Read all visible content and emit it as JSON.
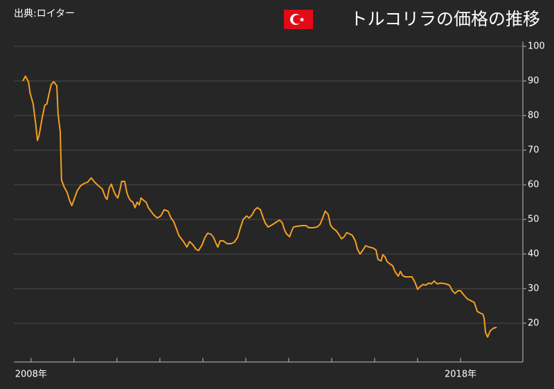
{
  "chart_data": {
    "type": "line",
    "source": "出典:ロイター",
    "title": "トルコリラの価格の推移",
    "color": "#f5a020",
    "grid": true,
    "ylim": [
      10,
      100
    ],
    "yticks": [
      20,
      30,
      40,
      50,
      60,
      70,
      80,
      90,
      100
    ],
    "xlim": [
      2007.6,
      2019.45
    ],
    "xticks": [
      {
        "value": 2008,
        "label": "2008年"
      },
      {
        "value": 2009,
        "label": null
      },
      {
        "value": 2010,
        "label": null
      },
      {
        "value": 2011,
        "label": null
      },
      {
        "value": 2012,
        "label": null
      },
      {
        "value": 2013,
        "label": null
      },
      {
        "value": 2014,
        "label": null
      },
      {
        "value": 2015,
        "label": null
      },
      {
        "value": 2016,
        "label": null
      },
      {
        "value": 2017,
        "label": null
      },
      {
        "value": 2018,
        "label": "2018年"
      }
    ],
    "x": [
      2007.81,
      2007.87,
      2007.94,
      2007.98,
      2008.05,
      2008.11,
      2008.15,
      2008.19,
      2008.26,
      2008.32,
      2008.37,
      2008.42,
      2008.47,
      2008.53,
      2008.6,
      2008.63,
      2008.68,
      2008.71,
      2008.77,
      2008.84,
      2008.9,
      2008.95,
      2009.02,
      2009.08,
      2009.16,
      2009.24,
      2009.32,
      2009.4,
      2009.48,
      2009.56,
      2009.66,
      2009.73,
      2009.77,
      2009.82,
      2009.87,
      2009.92,
      2009.97,
      2010.02,
      2010.06,
      2010.11,
      2010.18,
      2010.23,
      2010.27,
      2010.32,
      2010.37,
      2010.42,
      2010.47,
      2010.52,
      2010.56,
      2010.63,
      2010.68,
      2010.73,
      2010.79,
      2010.85,
      2010.94,
      2011.02,
      2011.1,
      2011.19,
      2011.26,
      2011.32,
      2011.37,
      2011.44,
      2011.5,
      2011.56,
      2011.63,
      2011.69,
      2011.76,
      2011.84,
      2011.9,
      2011.98,
      2012.05,
      2012.11,
      2012.18,
      2012.24,
      2012.31,
      2012.35,
      2012.4,
      2012.48,
      2012.56,
      2012.66,
      2012.73,
      2012.81,
      2012.87,
      2012.94,
      2013.02,
      2013.08,
      2013.15,
      2013.21,
      2013.27,
      2013.34,
      2013.39,
      2013.45,
      2013.52,
      2013.58,
      2013.66,
      2013.73,
      2013.79,
      2013.85,
      2013.9,
      2013.95,
      2014.02,
      2014.06,
      2014.11,
      2014.18,
      2014.31,
      2014.4,
      2014.47,
      2014.56,
      2014.66,
      2014.73,
      2014.79,
      2014.85,
      2014.92,
      2014.97,
      2015.03,
      2015.1,
      2015.16,
      2015.23,
      2015.29,
      2015.35,
      2015.42,
      2015.48,
      2015.55,
      2015.6,
      2015.66,
      2015.73,
      2015.79,
      2015.87,
      2015.95,
      2016.03,
      2016.08,
      2016.15,
      2016.19,
      2016.24,
      2016.29,
      2016.35,
      2016.42,
      2016.48,
      2016.55,
      2016.6,
      2016.65,
      2016.71,
      2016.79,
      2016.87,
      2016.94,
      2017.0,
      2017.06,
      2017.13,
      2017.19,
      2017.26,
      2017.32,
      2017.39,
      2017.45,
      2017.55,
      2017.65,
      2017.74,
      2017.81,
      2017.87,
      2017.94,
      2018.0,
      2018.06,
      2018.16,
      2018.26,
      2018.32,
      2018.39,
      2018.45,
      2018.52,
      2018.55,
      2018.58,
      2018.63,
      2018.69,
      2018.77,
      2018.84
    ],
    "values": [
      90.0,
      91.4,
      89.8,
      86.4,
      83.4,
      77.4,
      72.8,
      74.4,
      79.4,
      83.0,
      83.4,
      86.4,
      89.0,
      89.8,
      88.6,
      80.4,
      75.4,
      61.4,
      59.4,
      57.8,
      55.4,
      54.0,
      56.4,
      58.4,
      59.8,
      60.4,
      60.8,
      62.0,
      60.8,
      59.8,
      58.8,
      56.4,
      55.8,
      59.0,
      60.2,
      58.4,
      57.0,
      56.2,
      58.0,
      61.0,
      61.0,
      57.8,
      56.4,
      55.4,
      55.0,
      53.4,
      55.0,
      54.2,
      56.2,
      55.4,
      55.0,
      53.4,
      52.4,
      51.4,
      50.4,
      51.0,
      52.8,
      52.4,
      50.4,
      49.4,
      47.8,
      45.4,
      44.4,
      43.4,
      42.0,
      43.6,
      42.8,
      41.4,
      41.0,
      42.6,
      44.8,
      46.0,
      45.8,
      45.0,
      43.0,
      42.0,
      43.8,
      43.8,
      43.0,
      43.0,
      43.4,
      44.8,
      47.4,
      50.0,
      51.0,
      50.4,
      51.4,
      52.8,
      53.4,
      52.8,
      51.0,
      49.0,
      47.8,
      48.2,
      48.8,
      49.4,
      49.8,
      49.0,
      47.0,
      45.8,
      45.0,
      46.4,
      47.8,
      48.0,
      48.2,
      48.2,
      47.6,
      47.6,
      47.8,
      48.6,
      50.4,
      52.4,
      51.4,
      48.4,
      47.4,
      46.8,
      45.8,
      44.4,
      45.0,
      46.2,
      45.8,
      45.4,
      43.8,
      41.4,
      40.0,
      41.2,
      42.4,
      42.0,
      41.8,
      41.2,
      38.4,
      38.0,
      39.8,
      39.2,
      37.8,
      37.2,
      36.6,
      34.8,
      33.6,
      35.0,
      33.8,
      33.4,
      33.4,
      33.4,
      31.8,
      29.8,
      30.6,
      31.2,
      31.0,
      31.6,
      31.4,
      32.2,
      31.4,
      31.6,
      31.4,
      31.0,
      29.4,
      28.6,
      29.4,
      29.4,
      28.4,
      27.0,
      26.4,
      26.0,
      23.4,
      23.0,
      22.6,
      21.4,
      17.4,
      16.0,
      17.8,
      18.6,
      18.8
    ]
  }
}
